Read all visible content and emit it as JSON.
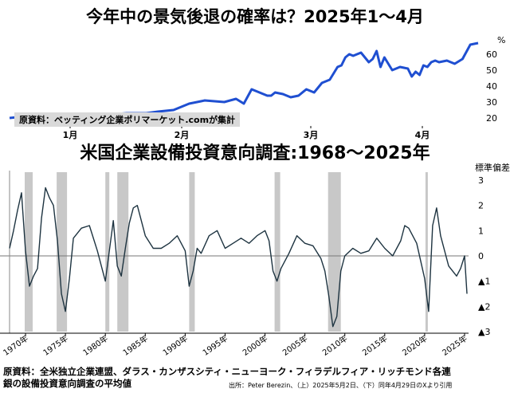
{
  "chart_data": [
    {
      "type": "line",
      "title": "今年中の景気後退の確率は？2025年1〜4月",
      "unit": "%",
      "x_tick_labels": [
        "1月",
        "2月",
        "3月",
        "4月"
      ],
      "ylim": [
        15,
        70
      ],
      "y_ticks": [
        20,
        30,
        40,
        50,
        60
      ],
      "series": [
        {
          "color": "#1f4fd1",
          "x": [
            0,
            4,
            8,
            12,
            16,
            20,
            25,
            30,
            35,
            38,
            42,
            46,
            50,
            55,
            58,
            60,
            62,
            65,
            66,
            67,
            68,
            70,
            72,
            74,
            76,
            78,
            80,
            82,
            84,
            85,
            86,
            87,
            88,
            90,
            92,
            93,
            94,
            95,
            96,
            98,
            100,
            102,
            103,
            104,
            105,
            106,
            107,
            108,
            109,
            110,
            112,
            114,
            116,
            118,
            120
          ],
          "y": [
            20,
            21,
            21,
            22,
            21,
            22,
            22,
            23,
            23,
            24,
            25,
            29,
            31,
            30,
            32,
            29,
            38,
            35,
            34,
            34,
            36,
            35,
            33,
            34,
            38,
            36,
            42,
            44,
            52,
            53,
            58,
            60,
            59,
            61,
            55,
            57,
            62,
            52,
            58,
            50,
            52,
            51,
            46,
            49,
            47,
            53,
            52,
            55,
            56,
            55,
            56,
            54,
            57,
            66,
            67
          ]
        }
      ],
      "source": "原資料：ベッティング企業ポリマーケット.comが集計"
    },
    {
      "type": "line",
      "title": "米国企業設備投資意向調査:1968〜2025年",
      "unit": "標準偏差",
      "x_tick_labels": [
        "1970年",
        "1975年",
        "1980年",
        "1985年",
        "1990年",
        "1995年",
        "2000年",
        "2005年",
        "2010年",
        "2015年",
        "2020年",
        "2025年"
      ],
      "xlim": [
        1968,
        2025.5
      ],
      "ylim": [
        -3,
        3
      ],
      "y_tick_labels": [
        "3",
        "2",
        "1",
        "0",
        "▲1",
        "▲2",
        "▲3"
      ],
      "recessions": [
        [
          1969.9,
          1970.9
        ],
        [
          1973.9,
          1975.2
        ],
        [
          1980.0,
          1980.5
        ],
        [
          1981.5,
          1982.9
        ],
        [
          1990.5,
          1991.2
        ],
        [
          2001.2,
          2001.9
        ],
        [
          2007.9,
          2009.5
        ],
        [
          2020.1,
          2020.4
        ]
      ],
      "series": [
        {
          "color": "#1d3340",
          "x": [
            1968,
            1968.5,
            1969,
            1969.5,
            1970,
            1970.5,
            1971,
            1971.5,
            1972,
            1972.5,
            1973,
            1973.5,
            1974,
            1974.5,
            1975,
            1975.5,
            1976,
            1977,
            1978,
            1979,
            1980,
            1980.5,
            1981,
            1981.5,
            1982,
            1982.5,
            1983,
            1983.5,
            1984,
            1985,
            1986,
            1987,
            1988,
            1989,
            1990,
            1990.5,
            1991,
            1991.5,
            1992,
            1993,
            1994,
            1995,
            1996,
            1997,
            1998,
            1999,
            2000,
            2000.5,
            2001,
            2001.5,
            2002,
            2003,
            2004,
            2005,
            2006,
            2007,
            2007.5,
            2008,
            2008.5,
            2009,
            2009.5,
            2010,
            2011,
            2012,
            2013,
            2014,
            2015,
            2016,
            2017,
            2017.5,
            2018,
            2019,
            2019.5,
            2020,
            2020.5,
            2021,
            2021.5,
            2022,
            2023,
            2024,
            2024.5,
            2025,
            2025.3
          ],
          "y": [
            0.3,
            1.0,
            1.8,
            2.5,
            0.2,
            -1.2,
            -0.8,
            -0.5,
            1.5,
            2.7,
            2.3,
            2.0,
            0.6,
            -1.5,
            -2.2,
            -0.9,
            0.7,
            1.1,
            1.2,
            0.2,
            -1.0,
            0.2,
            1.4,
            -0.4,
            -0.8,
            0.3,
            1.3,
            1.9,
            2.0,
            0.8,
            0.3,
            0.3,
            0.5,
            0.8,
            0.2,
            -1.2,
            -0.6,
            0.3,
            0.1,
            0.8,
            1.0,
            0.3,
            0.5,
            0.7,
            0.5,
            0.8,
            1.0,
            0.6,
            -0.6,
            -1.0,
            -0.5,
            0.1,
            0.8,
            0.5,
            0.4,
            -0.1,
            -0.6,
            -1.6,
            -2.8,
            -2.4,
            -0.6,
            0.0,
            0.3,
            0.1,
            0.2,
            0.7,
            0.3,
            0.0,
            0.6,
            1.2,
            1.1,
            0.5,
            -0.2,
            -0.9,
            -2.2,
            1.2,
            1.9,
            0.8,
            -0.4,
            -0.8,
            -0.5,
            0.0,
            -1.5
          ]
        }
      ]
    }
  ],
  "footer": {
    "source_line1": "原資料：全米独立企業連盟、ダラス・カンザスシティ・ニューヨーク・フィラデルフィア・リッチモンド各連",
    "source_line2": "銀の設備投資意向調査の平均値",
    "credit": "出所：Peter Berezin、（上）2025年5月2日、（下）同年4月29日のXより引用"
  }
}
